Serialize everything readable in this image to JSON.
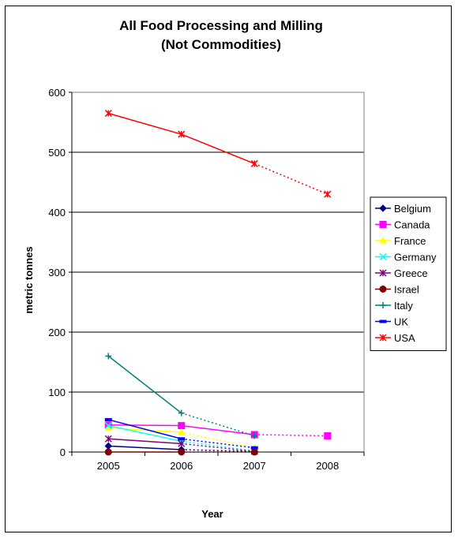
{
  "chart_data": {
    "type": "line",
    "title": "All Food Processing and Milling",
    "subtitle": "(Not Commodities)",
    "xlabel": "Year",
    "ylabel": "metric tonnes",
    "categories": [
      "2005",
      "2006",
      "2007",
      "2008"
    ],
    "ylim": [
      0,
      600
    ],
    "yticks": [
      0,
      100,
      200,
      300,
      400,
      500,
      600
    ],
    "grid": true,
    "legend_position": "right",
    "series": [
      {
        "name": "Belgium",
        "color": "#000080",
        "marker": "diamond",
        "values": [
          10,
          4,
          1,
          null
        ],
        "dashed_from_index": 1
      },
      {
        "name": "Canada",
        "color": "#FF00FF",
        "marker": "square",
        "values": [
          45,
          44,
          29,
          27
        ],
        "dashed_from_index": 2
      },
      {
        "name": "France",
        "color": "#FFFF00",
        "marker": "triangle",
        "values": [
          40,
          33,
          7,
          null
        ],
        "dashed_from_index": 1
      },
      {
        "name": "Germany",
        "color": "#00FFFF",
        "marker": "x",
        "values": [
          44,
          18,
          2,
          null
        ],
        "dashed_from_index": 1
      },
      {
        "name": "Greece",
        "color": "#800080",
        "marker": "star",
        "values": [
          22,
          14,
          1,
          null
        ],
        "dashed_from_index": 1
      },
      {
        "name": "Israel",
        "color": "#800000",
        "marker": "circle",
        "values": [
          0,
          0,
          0,
          null
        ],
        "dashed_from_index": 1
      },
      {
        "name": "Italy",
        "color": "#008080",
        "marker": "plus",
        "values": [
          160,
          65,
          27,
          null
        ],
        "dashed_from_index": 1
      },
      {
        "name": "UK",
        "color": "#0000FF",
        "marker": "dash",
        "values": [
          54,
          22,
          7,
          null
        ],
        "dashed_from_index": 1
      },
      {
        "name": "USA",
        "color": "#FF0000",
        "marker": "star",
        "values": [
          565,
          530,
          481,
          430
        ],
        "dashed_from_index": 2
      }
    ]
  }
}
